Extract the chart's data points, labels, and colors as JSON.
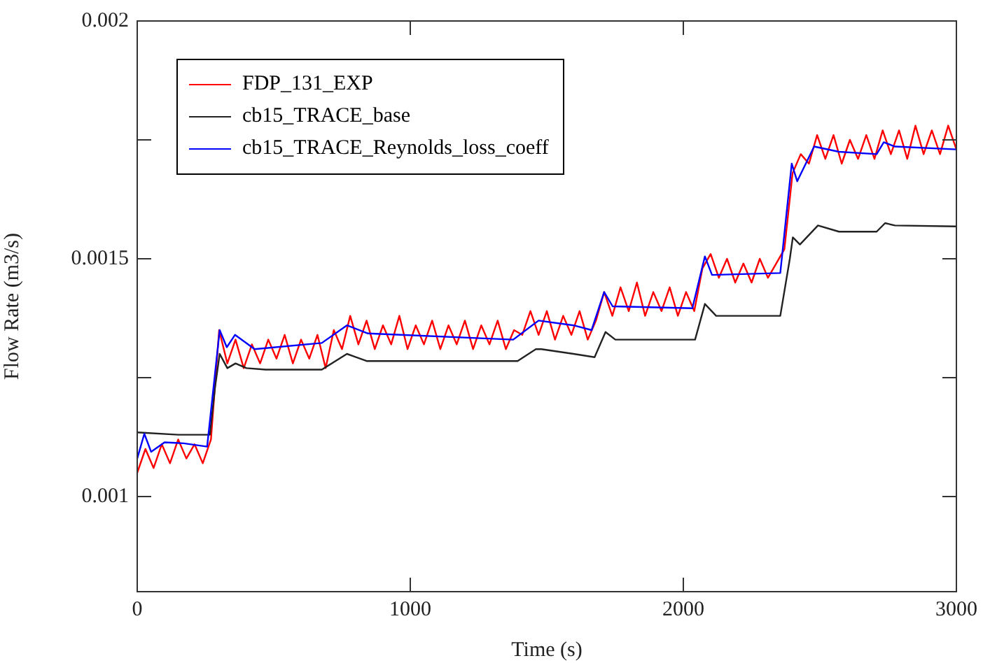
{
  "chart_data": {
    "type": "line",
    "xlabel": "Time (s)",
    "ylabel": "Flow Rate (m3/s)",
    "xlim": [
      0,
      3000
    ],
    "xticks": [
      0,
      1000,
      2000,
      3000
    ],
    "ylim": [
      0.0008,
      0.002
    ],
    "yticks": [
      0.001,
      {
        "value": 0.00125,
        "label": null
      },
      0.0015,
      {
        "value": 0.00175,
        "label": null
      },
      0.002
    ],
    "legend": "top left",
    "marker": "none",
    "line_style": "solid",
    "series": [
      {
        "name": "FDP_131_EXP",
        "color": "#ff0000",
        "x": [
          0,
          30,
          60,
          90,
          120,
          150,
          180,
          210,
          240,
          270,
          300,
          330,
          360,
          390,
          420,
          450,
          480,
          510,
          540,
          570,
          600,
          630,
          660,
          690,
          720,
          750,
          780,
          810,
          840,
          870,
          900,
          930,
          960,
          990,
          1020,
          1050,
          1080,
          1110,
          1140,
          1170,
          1200,
          1230,
          1260,
          1290,
          1320,
          1350,
          1380,
          1410,
          1440,
          1470,
          1500,
          1530,
          1560,
          1590,
          1620,
          1650,
          1680,
          1710,
          1740,
          1770,
          1800,
          1830,
          1860,
          1890,
          1920,
          1950,
          1980,
          2010,
          2040,
          2070,
          2100,
          2130,
          2160,
          2190,
          2220,
          2250,
          2280,
          2310,
          2340,
          2370,
          2400,
          2430,
          2460,
          2490,
          2520,
          2550,
          2580,
          2610,
          2640,
          2670,
          2700,
          2730,
          2760,
          2790,
          2820,
          2850,
          2880,
          2910,
          2940,
          2970,
          3000
        ],
        "values": [
          0.00105,
          0.0011,
          0.00106,
          0.00111,
          0.00107,
          0.00112,
          0.00108,
          0.00111,
          0.00107,
          0.00112,
          0.00135,
          0.00128,
          0.00133,
          0.00127,
          0.00132,
          0.00128,
          0.00133,
          0.00129,
          0.00134,
          0.00128,
          0.00133,
          0.00129,
          0.00134,
          0.00127,
          0.00135,
          0.00131,
          0.00138,
          0.00132,
          0.00137,
          0.00131,
          0.00136,
          0.00132,
          0.00138,
          0.00131,
          0.00136,
          0.00132,
          0.00137,
          0.00131,
          0.00136,
          0.00132,
          0.00137,
          0.00131,
          0.00136,
          0.00132,
          0.00137,
          0.00131,
          0.00135,
          0.00134,
          0.00139,
          0.00134,
          0.00139,
          0.00133,
          0.00138,
          0.00134,
          0.00139,
          0.00133,
          0.00137,
          0.00143,
          0.00138,
          0.00144,
          0.00139,
          0.00145,
          0.00138,
          0.00143,
          0.00139,
          0.00144,
          0.00138,
          0.00143,
          0.00139,
          0.00148,
          0.00151,
          0.00146,
          0.0015,
          0.00145,
          0.00149,
          0.00145,
          0.0015,
          0.00146,
          0.00149,
          0.00152,
          0.00168,
          0.00172,
          0.0017,
          0.00176,
          0.00171,
          0.00176,
          0.0017,
          0.00175,
          0.00171,
          0.00176,
          0.00171,
          0.00177,
          0.00172,
          0.00177,
          0.00171,
          0.00178,
          0.00172,
          0.00177,
          0.00172,
          0.00178,
          0.00173
        ]
      },
      {
        "name": "cb15_TRACE_base",
        "color": "#222222",
        "x": [
          0,
          150,
          266,
          285,
          302,
          330,
          360,
          400,
          470,
          676,
          768,
          840,
          1393,
          1460,
          1480,
          1598,
          1675,
          1715,
          1751,
          2043,
          2079,
          2120,
          2355,
          2390,
          2401,
          2427,
          2493,
          2570,
          2708,
          2739,
          2775,
          3000
        ],
        "values": [
          0.001135,
          0.00113,
          0.00113,
          0.00123,
          0.0013,
          0.00127,
          0.00128,
          0.00127,
          0.001267,
          0.001267,
          0.0013,
          0.001285,
          0.001285,
          0.00131,
          0.00131,
          0.0013,
          0.001293,
          0.001346,
          0.00133,
          0.00133,
          0.001405,
          0.00138,
          0.00138,
          0.0015,
          0.001545,
          0.00153,
          0.00157,
          0.001557,
          0.001557,
          0.001575,
          0.00157,
          0.001568
        ]
      },
      {
        "name": "cb15_TRACE_Reynolds_loss_coeff",
        "color": "#0000ff",
        "x": [
          0,
          26,
          51,
          100,
          170,
          256,
          302,
          328,
          358,
          430,
          676,
          768,
          845,
          1377,
          1470,
          1598,
          1664,
          1710,
          1741,
          2033,
          2079,
          2105,
          2355,
          2397,
          2417,
          2479,
          2570,
          2708,
          2734,
          2775,
          3000
        ],
        "values": [
          0.00108,
          0.001132,
          0.001094,
          0.001114,
          0.001112,
          0.001105,
          0.00135,
          0.001314,
          0.00134,
          0.00131,
          0.001323,
          0.00136,
          0.001343,
          0.00133,
          0.00137,
          0.00136,
          0.00135,
          0.00143,
          0.0014,
          0.001396,
          0.001505,
          0.001466,
          0.00147,
          0.0017,
          0.001663,
          0.001736,
          0.001725,
          0.00172,
          0.001745,
          0.001736,
          0.00173
        ]
      }
    ]
  }
}
